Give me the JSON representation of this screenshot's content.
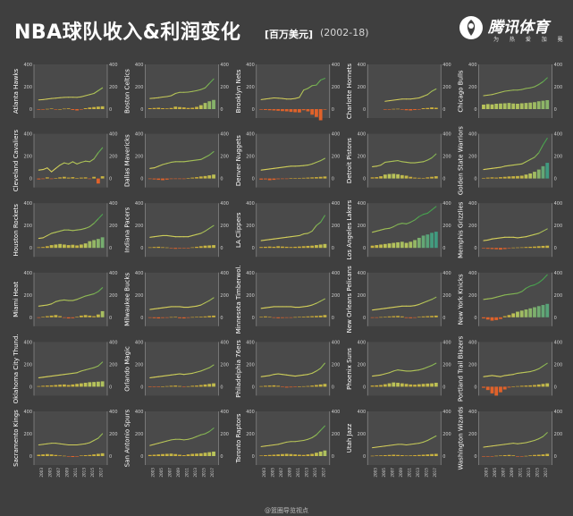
{
  "header": {
    "title": "NBA球队收入&利润变化",
    "unit": "[百万美元]",
    "range": "(2002-18)"
  },
  "logo": {
    "name": "腾讯体育",
    "slogan": "为 热 爱 加 冕"
  },
  "footer": {
    "watermark": "@篮圈导览视点"
  },
  "colors": {
    "background": "#3f3f3f",
    "plot_background": "#4a4a4a",
    "revenue_line_start": "#d7d05a",
    "revenue_line_end": "#46a24f",
    "profit_bar_low": "#d6a42a",
    "profit_bar_mid": "#b9c45a",
    "profit_bar_high": "#3f9a80",
    "loss_bar": "#e0622a",
    "axis": "#9a9a9a"
  },
  "chart_data": {
    "type": "line+bar small multiples",
    "years": [
      2002,
      2003,
      2004,
      2005,
      2006,
      2007,
      2008,
      2009,
      2010,
      2011,
      2012,
      2013,
      2014,
      2015,
      2016,
      2017
    ],
    "x_tick_labels": [
      "2003",
      "2005",
      "2007",
      "2009",
      "2011",
      "2013",
      "2015",
      "2017"
    ],
    "y_ticks": [
      0,
      200,
      400
    ],
    "ylim": [
      -80,
      400
    ],
    "series_legend": {
      "line": "收入",
      "bars": "利润"
    },
    "teams": [
      {
        "name": "Atlanta Hawks",
        "revenue": [
          82,
          85,
          90,
          95,
          98,
          102,
          105,
          106,
          106,
          105,
          110,
          120,
          130,
          140,
          165,
          190
        ],
        "profit": [
          -5,
          -2,
          2,
          5,
          -3,
          0,
          4,
          6,
          -8,
          -12,
          -3,
          8,
          14,
          18,
          22,
          25
        ]
      },
      {
        "name": "Boston Celtics",
        "revenue": [
          95,
          98,
          102,
          108,
          112,
          120,
          140,
          150,
          150,
          152,
          158,
          165,
          175,
          190,
          230,
          270
        ],
        "profit": [
          8,
          10,
          12,
          8,
          6,
          10,
          22,
          18,
          15,
          10,
          12,
          20,
          35,
          55,
          70,
          82
        ]
      },
      {
        "name": "Brooklyn Nets",
        "revenue": [
          85,
          90,
          95,
          100,
          98,
          95,
          90,
          90,
          95,
          105,
          170,
          185,
          210,
          215,
          260,
          275
        ],
        "profit": [
          -5,
          -8,
          -10,
          -12,
          -15,
          -18,
          -20,
          -25,
          -28,
          -30,
          -10,
          -20,
          -50,
          -70,
          -100,
          -5
        ]
      },
      {
        "name": "Charlotte Hornets",
        "revenue": [
          null,
          null,
          null,
          70,
          75,
          80,
          85,
          90,
          90,
          90,
          95,
          100,
          115,
          130,
          160,
          180
        ],
        "profit": [
          null,
          null,
          null,
          -5,
          -3,
          2,
          3,
          -5,
          -10,
          -12,
          -8,
          -5,
          8,
          10,
          15,
          12
        ]
      },
      {
        "name": "Chicago Bulls",
        "revenue": [
          120,
          125,
          130,
          140,
          150,
          160,
          165,
          170,
          170,
          175,
          185,
          190,
          200,
          220,
          245,
          280
        ],
        "profit": [
          40,
          45,
          42,
          48,
          50,
          52,
          55,
          50,
          48,
          52,
          55,
          58,
          62,
          70,
          75,
          80
        ]
      },
      {
        "name": "Cleveland Cavaliers",
        "revenue": [
          75,
          80,
          95,
          60,
          90,
          120,
          140,
          130,
          150,
          130,
          145,
          155,
          150,
          175,
          230,
          275
        ],
        "profit": [
          -8,
          -5,
          10,
          -5,
          2,
          10,
          15,
          8,
          12,
          5,
          8,
          10,
          -5,
          15,
          -45,
          20
        ]
      },
      {
        "name": "Dallas Mavericks",
        "revenue": [
          90,
          95,
          110,
          125,
          135,
          145,
          150,
          150,
          150,
          155,
          160,
          165,
          170,
          190,
          210,
          240
        ],
        "profit": [
          -5,
          -8,
          -12,
          -15,
          -10,
          -5,
          -3,
          -2,
          -5,
          3,
          8,
          12,
          18,
          22,
          28,
          35
        ]
      },
      {
        "name": "Denver Nuggets",
        "revenue": [
          75,
          80,
          85,
          90,
          95,
          100,
          105,
          110,
          110,
          112,
          115,
          120,
          130,
          145,
          160,
          180
        ],
        "profit": [
          -10,
          -8,
          -15,
          -12,
          -6,
          -4,
          -2,
          2,
          3,
          5,
          6,
          8,
          10,
          12,
          15,
          18
        ]
      },
      {
        "name": "Detroit Pistons",
        "revenue": [
          105,
          110,
          120,
          145,
          150,
          155,
          160,
          150,
          145,
          140,
          140,
          145,
          150,
          165,
          185,
          220
        ],
        "profit": [
          10,
          12,
          20,
          35,
          40,
          42,
          38,
          30,
          25,
          15,
          8,
          6,
          5,
          10,
          15,
          20
        ]
      },
      {
        "name": "Golden State Warriors",
        "revenue": [
          80,
          85,
          90,
          95,
          100,
          110,
          115,
          120,
          125,
          130,
          150,
          170,
          190,
          230,
          300,
          360
        ],
        "profit": [
          5,
          8,
          10,
          8,
          12,
          15,
          18,
          20,
          22,
          25,
          35,
          45,
          60,
          80,
          110,
          140
        ]
      },
      {
        "name": "Houston Rockets",
        "revenue": [
          85,
          90,
          110,
          130,
          140,
          150,
          160,
          160,
          155,
          160,
          165,
          175,
          190,
          220,
          260,
          300
        ],
        "profit": [
          5,
          8,
          15,
          25,
          30,
          35,
          30,
          25,
          28,
          22,
          30,
          40,
          60,
          70,
          80,
          95
        ]
      },
      {
        "name": "Indiana Pacers",
        "revenue": [
          95,
          100,
          105,
          110,
          110,
          105,
          100,
          100,
          100,
          100,
          110,
          120,
          130,
          150,
          175,
          200
        ],
        "profit": [
          5,
          8,
          10,
          6,
          4,
          -5,
          -8,
          -5,
          -4,
          -2,
          5,
          10,
          15,
          20,
          22,
          25
        ]
      },
      {
        "name": "LA Clippers",
        "revenue": [
          65,
          70,
          75,
          80,
          85,
          90,
          95,
          100,
          105,
          110,
          125,
          130,
          150,
          200,
          230,
          290
        ],
        "profit": [
          8,
          10,
          12,
          10,
          15,
          12,
          10,
          8,
          10,
          12,
          15,
          18,
          20,
          25,
          30,
          35
        ]
      },
      {
        "name": "Los Angeles Lakers",
        "revenue": [
          140,
          150,
          160,
          170,
          175,
          190,
          210,
          220,
          215,
          230,
          250,
          280,
          300,
          310,
          340,
          370
        ],
        "profit": [
          20,
          25,
          30,
          35,
          40,
          45,
          50,
          55,
          45,
          55,
          70,
          90,
          110,
          120,
          135,
          145
        ]
      },
      {
        "name": "Memphis Grizzlies",
        "revenue": [
          65,
          70,
          80,
          85,
          90,
          95,
          95,
          95,
          90,
          95,
          100,
          110,
          120,
          130,
          150,
          170
        ],
        "profit": [
          -5,
          -8,
          -10,
          -12,
          -15,
          -10,
          -5,
          3,
          4,
          5,
          8,
          10,
          12,
          15,
          18,
          20
        ]
      },
      {
        "name": "Miami Heat",
        "revenue": [
          100,
          105,
          110,
          120,
          140,
          150,
          155,
          150,
          150,
          160,
          175,
          190,
          200,
          210,
          230,
          265
        ],
        "profit": [
          -5,
          5,
          10,
          15,
          20,
          10,
          -5,
          -10,
          -8,
          5,
          15,
          20,
          15,
          10,
          25,
          55
        ]
      },
      {
        "name": "Milwaukee Bucks",
        "revenue": [
          70,
          75,
          80,
          85,
          90,
          95,
          95,
          95,
          90,
          90,
          95,
          100,
          110,
          130,
          150,
          175
        ],
        "profit": [
          -5,
          -8,
          -10,
          -6,
          -3,
          2,
          3,
          -8,
          -10,
          -5,
          2,
          4,
          6,
          8,
          12,
          15
        ]
      },
      {
        "name": "Minnesota Timberwol.",
        "revenue": [
          80,
          85,
          90,
          95,
          95,
          95,
          95,
          95,
          90,
          90,
          95,
          100,
          110,
          125,
          145,
          165
        ],
        "profit": [
          5,
          8,
          3,
          -5,
          -8,
          -6,
          -4,
          -3,
          2,
          4,
          6,
          8,
          10,
          12,
          15,
          20
        ]
      },
      {
        "name": "New Orleans Pelicans",
        "revenue": [
          65,
          70,
          75,
          80,
          85,
          90,
          95,
          100,
          100,
          100,
          105,
          115,
          130,
          145,
          160,
          180
        ],
        "profit": [
          -5,
          -3,
          2,
          5,
          8,
          10,
          12,
          8,
          -6,
          -8,
          -5,
          4,
          8,
          10,
          12,
          15
        ]
      },
      {
        "name": "New York Knicks",
        "revenue": [
          160,
          165,
          170,
          180,
          190,
          200,
          205,
          210,
          215,
          230,
          260,
          280,
          290,
          310,
          340,
          380
        ],
        "profit": [
          -10,
          -20,
          -30,
          -25,
          -15,
          10,
          20,
          35,
          50,
          60,
          70,
          80,
          90,
          100,
          110,
          120
        ]
      },
      {
        "name": "Oklahoma City Thund.",
        "revenue": [
          80,
          85,
          90,
          95,
          100,
          105,
          110,
          115,
          120,
          125,
          140,
          150,
          160,
          170,
          185,
          220
        ],
        "profit": [
          5,
          8,
          10,
          12,
          15,
          18,
          20,
          15,
          20,
          25,
          30,
          35,
          40,
          42,
          45,
          48
        ]
      },
      {
        "name": "Orlando Magic",
        "revenue": [
          80,
          85,
          90,
          95,
          100,
          105,
          110,
          115,
          110,
          115,
          120,
          130,
          140,
          155,
          170,
          195
        ],
        "profit": [
          -3,
          -5,
          -2,
          3,
          5,
          8,
          10,
          6,
          -5,
          4,
          8,
          10,
          15,
          20,
          25,
          30
        ]
      },
      {
        "name": "Philadelphia 76ers",
        "revenue": [
          90,
          95,
          100,
          110,
          115,
          110,
          105,
          100,
          95,
          100,
          105,
          110,
          120,
          140,
          165,
          210
        ],
        "profit": [
          5,
          8,
          10,
          12,
          8,
          -5,
          -8,
          -6,
          -3,
          2,
          4,
          6,
          10,
          15,
          20,
          25
        ]
      },
      {
        "name": "Phoenix Suns",
        "revenue": [
          95,
          100,
          105,
          115,
          125,
          140,
          150,
          145,
          140,
          140,
          145,
          150,
          160,
          175,
          190,
          210
        ],
        "profit": [
          10,
          12,
          15,
          22,
          30,
          38,
          35,
          30,
          25,
          20,
          18,
          22,
          25,
          28,
          30,
          35
        ]
      },
      {
        "name": "Portland Trail Blazers",
        "revenue": [
          90,
          95,
          100,
          95,
          90,
          100,
          105,
          110,
          120,
          125,
          130,
          135,
          145,
          160,
          185,
          210
        ],
        "profit": [
          -10,
          -30,
          -60,
          -80,
          -50,
          -25,
          -8,
          3,
          5,
          8,
          10,
          12,
          15,
          20,
          25,
          30
        ]
      },
      {
        "name": "Sacramento Kings",
        "revenue": [
          100,
          105,
          110,
          115,
          115,
          110,
          105,
          100,
          100,
          100,
          105,
          110,
          120,
          140,
          160,
          200
        ],
        "profit": [
          12,
          15,
          18,
          15,
          10,
          5,
          3,
          -5,
          -8,
          -3,
          5,
          8,
          10,
          15,
          20,
          25
        ]
      },
      {
        "name": "San Antonio Spurs",
        "revenue": [
          95,
          105,
          115,
          125,
          135,
          145,
          150,
          150,
          145,
          150,
          160,
          175,
          190,
          200,
          220,
          250
        ],
        "profit": [
          10,
          12,
          15,
          18,
          20,
          22,
          18,
          12,
          8,
          15,
          20,
          22,
          25,
          30,
          35,
          40
        ]
      },
      {
        "name": "Toronto Raptors",
        "revenue": [
          85,
          90,
          95,
          100,
          105,
          115,
          125,
          130,
          130,
          135,
          140,
          150,
          165,
          190,
          230,
          270
        ],
        "profit": [
          5,
          8,
          10,
          12,
          15,
          18,
          20,
          18,
          15,
          12,
          10,
          15,
          20,
          30,
          40,
          50
        ]
      },
      {
        "name": "Utah Jazz",
        "revenue": [
          75,
          80,
          85,
          90,
          95,
          100,
          105,
          105,
          100,
          105,
          110,
          115,
          125,
          140,
          160,
          180
        ],
        "profit": [
          3,
          5,
          6,
          8,
          10,
          12,
          10,
          8,
          5,
          6,
          8,
          10,
          12,
          15,
          18,
          20
        ]
      },
      {
        "name": "Washington Wizards",
        "revenue": [
          80,
          85,
          90,
          95,
          100,
          105,
          110,
          115,
          110,
          115,
          120,
          130,
          140,
          155,
          175,
          210
        ],
        "profit": [
          -3,
          -5,
          -2,
          3,
          5,
          8,
          10,
          6,
          -5,
          -3,
          2,
          6,
          10,
          12,
          15,
          20
        ]
      }
    ]
  }
}
